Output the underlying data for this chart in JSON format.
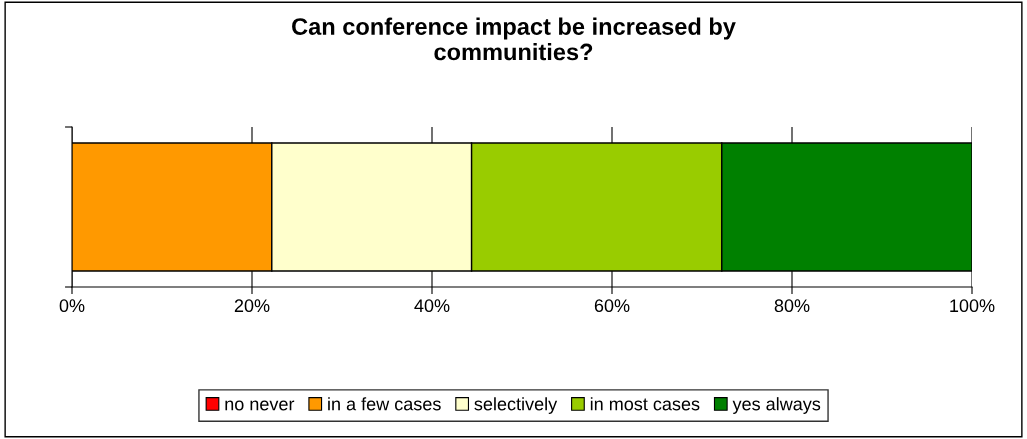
{
  "chart_data": {
    "type": "bar",
    "orientation": "horizontal",
    "stacked": true,
    "title": "Can conference impact be increased by\ncommunities?",
    "categories": [
      null
    ],
    "series": [
      {
        "name": "no never",
        "color": "#ff0000",
        "values": [
          0
        ]
      },
      {
        "name": "in a few cases",
        "color": "#ff9900",
        "values": [
          22.2
        ]
      },
      {
        "name": "selectively",
        "color": "#ffffcc",
        "values": [
          22.2
        ]
      },
      {
        "name": "in most cases",
        "color": "#99cc00",
        "values": [
          27.8
        ]
      },
      {
        "name": "yes always",
        "color": "#008000",
        "values": [
          27.8
        ]
      }
    ],
    "xlim": [
      0,
      100
    ],
    "xticks": [
      {
        "value": 0,
        "label": "0%"
      },
      {
        "value": 20,
        "label": "20%"
      },
      {
        "value": 40,
        "label": "40%"
      },
      {
        "value": 60,
        "label": "60%"
      },
      {
        "value": 80,
        "label": "80%"
      },
      {
        "value": 100,
        "label": "100%"
      }
    ],
    "grid": "x",
    "legend": "bottom"
  }
}
